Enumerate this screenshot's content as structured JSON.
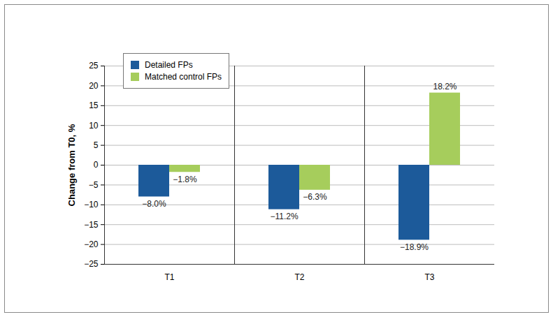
{
  "chart_data": {
    "type": "bar",
    "categories": [
      "T1",
      "T2",
      "T3"
    ],
    "series": [
      {
        "name": "Detailed FPs",
        "color": "#1c5a9a",
        "values": [
          -8.0,
          -11.2,
          -18.9
        ],
        "value_labels": [
          "−8.0%",
          "−11.2%",
          "−18.9%"
        ]
      },
      {
        "name": "Matched control FPs",
        "color": "#a6cd5c",
        "values": [
          -1.8,
          -6.3,
          18.2
        ],
        "value_labels": [
          "−1.8%",
          "−6.3%",
          "18.2%"
        ]
      }
    ],
    "y_label": "Change from T0, %",
    "ylim": [
      -25,
      25
    ],
    "yticks": [
      -25,
      -20,
      -15,
      -10,
      -5,
      0,
      5,
      10,
      15,
      20,
      25
    ],
    "grid": true,
    "legend": "upper left",
    "data_labels": true
  }
}
